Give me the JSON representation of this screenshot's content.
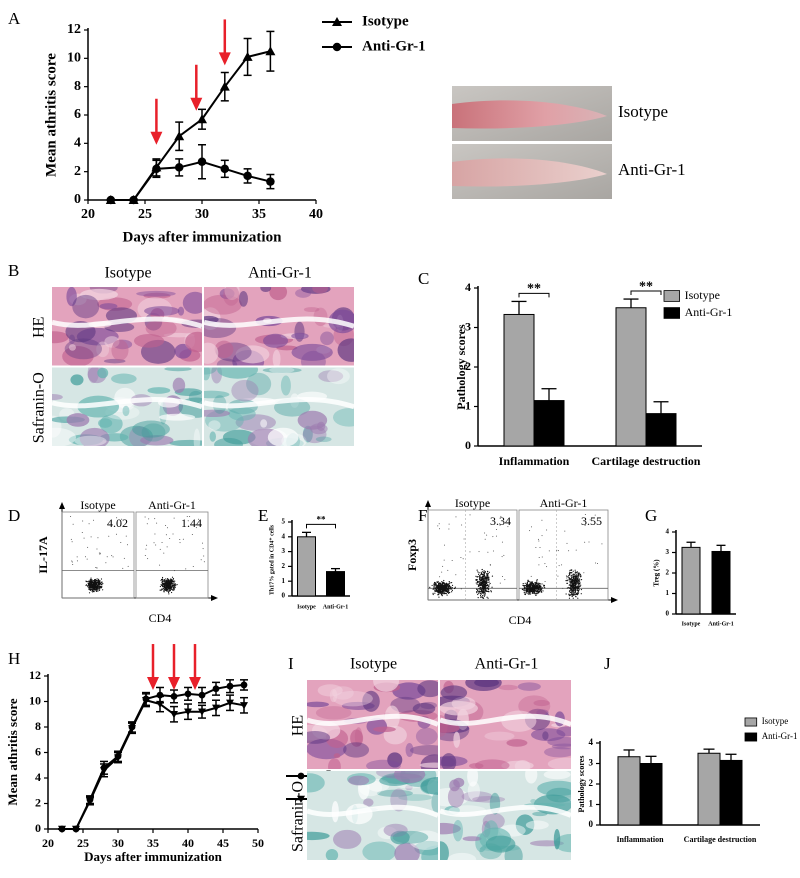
{
  "chart_data": [
    {
      "label": "A",
      "type": "line",
      "ylabel": "Mean athritis score",
      "xlabel": "Days after immunization",
      "x": [
        22,
        24,
        26,
        28,
        30,
        32,
        34,
        36
      ],
      "series": [
        {
          "name": "Isotype",
          "color": "#000000",
          "marker": "triangle",
          "values": [
            0,
            0,
            2.3,
            4.5,
            5.7,
            8,
            10.1,
            10.5
          ],
          "errors": [
            0,
            0,
            0.6,
            1,
            0.7,
            1,
            1.3,
            1.4
          ]
        },
        {
          "name": "Anti-Gr-1",
          "color": "#000000",
          "marker": "circle",
          "values": [
            0,
            0,
            2.2,
            2.3,
            2.7,
            2.2,
            1.7,
            1.3
          ],
          "errors": [
            0,
            0,
            0.6,
            0.6,
            1.2,
            0.6,
            0.5,
            0.5
          ]
        }
      ],
      "xlim": [
        20,
        40
      ],
      "xticks": [
        20,
        25,
        30,
        35,
        40
      ],
      "ylim": [
        0,
        12
      ],
      "yticks": [
        0,
        2,
        4,
        6,
        8,
        10,
        12
      ],
      "arrow_color": "#e8202a",
      "arrows": [
        {
          "x": 26,
          "y": 3.9
        },
        {
          "x": 29.5,
          "y": 6.3
        },
        {
          "x": 32,
          "y": 9.5
        }
      ]
    },
    {
      "label": "C",
      "type": "bar",
      "ylabel": "Pathology scores",
      "categories": [
        "Inflammation",
        "Cartilage destruction"
      ],
      "series": [
        {
          "name": "Isotype",
          "color": "#a6a6a6",
          "values": [
            3.33,
            3.5
          ],
          "errors": [
            0.33,
            0.22
          ]
        },
        {
          "name": "Anti-Gr-1",
          "color": "#000000",
          "values": [
            1.15,
            0.82
          ],
          "errors": [
            0.3,
            0.3
          ]
        }
      ],
      "ylim": [
        0,
        4
      ],
      "yticks": [
        0,
        1,
        2,
        3,
        4
      ],
      "significance": [
        {
          "text": "**",
          "category": 0
        },
        {
          "text": "**",
          "category": 1
        }
      ]
    },
    {
      "label": "E",
      "type": "bar",
      "ylabel": "Th17% gated in CD4⁺ cells",
      "categories": [
        "Isotype",
        "Anti-Gr-1"
      ],
      "values": [
        4.0,
        1.65
      ],
      "errors": [
        0.3,
        0.2
      ],
      "colors": [
        "#a6a6a6",
        "#000000"
      ],
      "ylim": [
        0,
        5
      ],
      "yticks": [
        0,
        1,
        2,
        3,
        4,
        5
      ],
      "significance": [
        {
          "text": "**",
          "from": 0,
          "to": 1
        }
      ]
    },
    {
      "label": "G",
      "type": "bar",
      "ylabel": "Treg (%)",
      "categories": [
        "Isotype",
        "Anti-Gr-1"
      ],
      "values": [
        3.25,
        3.05
      ],
      "errors": [
        0.25,
        0.3
      ],
      "colors": [
        "#a6a6a6",
        "#000000"
      ],
      "ylim": [
        0,
        4
      ],
      "yticks": [
        0,
        1,
        2,
        3,
        4
      ]
    },
    {
      "label": "H",
      "type": "line",
      "ylabel": "Mean athritis score",
      "xlabel": "Days after immunization",
      "x": [
        22,
        24,
        26,
        28,
        30,
        32,
        34,
        36,
        38,
        40,
        42,
        44,
        46,
        48
      ],
      "series": [
        {
          "name": "Isotype",
          "color": "#000000",
          "marker": "circle",
          "values": [
            0,
            0,
            2.3,
            4.8,
            5.7,
            8,
            10.2,
            10.5,
            10.4,
            10.6,
            10.5,
            11,
            11.2,
            11.3
          ],
          "errors": [
            0,
            0,
            0.3,
            0.5,
            0.4,
            0.4,
            0.5,
            0.6,
            0.5,
            0.5,
            0.6,
            0.5,
            0.5,
            0.4
          ]
        },
        {
          "name": "Anti-Gr-1",
          "color": "#000000",
          "marker": "triangle-down",
          "values": [
            0,
            0,
            2.2,
            4.6,
            5.6,
            7.9,
            10.1,
            9.8,
            9,
            9.2,
            9.2,
            9.5,
            9.9,
            9.7
          ],
          "errors": [
            0,
            0,
            0.3,
            0.5,
            0.4,
            0.4,
            0.5,
            0.6,
            0.6,
            0.6,
            0.5,
            0.6,
            0.6,
            0.6
          ]
        }
      ],
      "xlim": [
        20,
        50
      ],
      "xticks": [
        20,
        25,
        30,
        35,
        40,
        45,
        50
      ],
      "ylim": [
        0,
        12
      ],
      "yticks": [
        0,
        2,
        4,
        6,
        8,
        10,
        12
      ],
      "arrow_color": "#e8202a",
      "arrows": [
        {
          "x": 35,
          "y": 10.9
        },
        {
          "x": 38,
          "y": 10.9
        },
        {
          "x": 41,
          "y": 10.9
        }
      ]
    },
    {
      "label": "J",
      "type": "bar",
      "ylabel": "Pathology scores",
      "categories": [
        "Inflammation",
        "Cartilage destruction"
      ],
      "series": [
        {
          "name": "Isotype",
          "color": "#a6a6a6",
          "values": [
            3.33,
            3.5
          ],
          "errors": [
            0.33,
            0.2
          ]
        },
        {
          "name": "Anti-Gr-1",
          "color": "#000000",
          "values": [
            3.0,
            3.15
          ],
          "errors": [
            0.35,
            0.3
          ]
        }
      ],
      "ylim": [
        0,
        4
      ],
      "yticks": [
        0,
        1,
        2,
        3,
        4
      ]
    }
  ],
  "photo": {
    "labels": [
      "Isotype",
      "Anti-Gr-1"
    ]
  },
  "image_panels": [
    {
      "label": "B",
      "columns": [
        "Isotype",
        "Anti-Gr-1"
      ],
      "rows": [
        "HE",
        "Safranin-O"
      ]
    },
    {
      "label": "I",
      "columns": [
        "Isotype",
        "Anti-Gr-1"
      ],
      "rows": [
        "HE",
        "Safranin-O"
      ]
    }
  ],
  "flow_panels": [
    {
      "label": "D",
      "ylabel": "IL-17A",
      "xlabel": "CD4",
      "plots": [
        {
          "title": "Isotype",
          "value": 4.02
        },
        {
          "title": "Anti-Gr-1",
          "value": 1.44
        }
      ]
    },
    {
      "label": "F",
      "ylabel": "Foxp3",
      "xlabel": "CD4",
      "plots": [
        {
          "title": "Isotype",
          "value": 3.34
        },
        {
          "title": "Anti-Gr-1",
          "value": 3.55
        }
      ]
    }
  ]
}
